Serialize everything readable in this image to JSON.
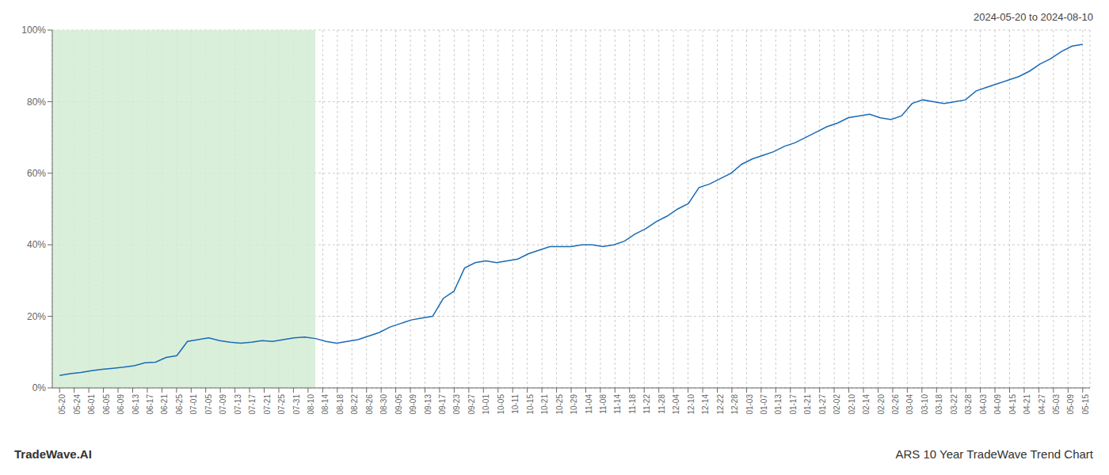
{
  "chart_data": {
    "type": "line",
    "title": "ARS 10 Year TradeWave Trend Chart",
    "subtitle": "2024-05-20 to 2024-08-10",
    "annotations": [
      "TradeWave.AI"
    ],
    "color": "#1a6bb5",
    "grid": true,
    "xlim": [
      -0.5,
      70.5
    ],
    "ylim": [
      0,
      100
    ],
    "yticks": [
      {
        "value": 0,
        "label": "0%"
      },
      {
        "value": 20,
        "label": "20%"
      },
      {
        "value": 40,
        "label": "40%"
      },
      {
        "value": 60,
        "label": "60%"
      },
      {
        "value": 80,
        "label": "80%"
      },
      {
        "value": 100,
        "label": "100%"
      }
    ],
    "xticks": [
      {
        "value": 0,
        "label": "05-20"
      },
      {
        "value": 1,
        "label": "05-24"
      },
      {
        "value": 2,
        "label": "06-01"
      },
      {
        "value": 3,
        "label": "06-05"
      },
      {
        "value": 4,
        "label": "06-09"
      },
      {
        "value": 5,
        "label": "06-13"
      },
      {
        "value": 6,
        "label": "06-17"
      },
      {
        "value": 7,
        "label": "06-21"
      },
      {
        "value": 8,
        "label": "06-25"
      },
      {
        "value": 9,
        "label": "07-01"
      },
      {
        "value": 10,
        "label": "07-05"
      },
      {
        "value": 11,
        "label": "07-09"
      },
      {
        "value": 12,
        "label": "07-13"
      },
      {
        "value": 13,
        "label": "07-17"
      },
      {
        "value": 14,
        "label": "07-21"
      },
      {
        "value": 15,
        "label": "07-25"
      },
      {
        "value": 16,
        "label": "07-31"
      },
      {
        "value": 17,
        "label": "08-10"
      },
      {
        "value": 18,
        "label": "08-14"
      },
      {
        "value": 19,
        "label": "08-18"
      },
      {
        "value": 20,
        "label": "08-22"
      },
      {
        "value": 21,
        "label": "08-26"
      },
      {
        "value": 22,
        "label": "08-30"
      },
      {
        "value": 23,
        "label": "09-05"
      },
      {
        "value": 24,
        "label": "09-09"
      },
      {
        "value": 25,
        "label": "09-13"
      },
      {
        "value": 26,
        "label": "09-17"
      },
      {
        "value": 27,
        "label": "09-23"
      },
      {
        "value": 28,
        "label": "09-27"
      },
      {
        "value": 29,
        "label": "10-01"
      },
      {
        "value": 30,
        "label": "10-05"
      },
      {
        "value": 31,
        "label": "10-11"
      },
      {
        "value": 32,
        "label": "10-15"
      },
      {
        "value": 33,
        "label": "10-21"
      },
      {
        "value": 34,
        "label": "10-25"
      },
      {
        "value": 35,
        "label": "10-29"
      },
      {
        "value": 36,
        "label": "11-04"
      },
      {
        "value": 37,
        "label": "11-08"
      },
      {
        "value": 38,
        "label": "11-14"
      },
      {
        "value": 39,
        "label": "11-18"
      },
      {
        "value": 40,
        "label": "11-22"
      },
      {
        "value": 41,
        "label": "11-28"
      },
      {
        "value": 42,
        "label": "12-04"
      },
      {
        "value": 43,
        "label": "12-10"
      },
      {
        "value": 44,
        "label": "12-14"
      },
      {
        "value": 45,
        "label": "12-22"
      },
      {
        "value": 46,
        "label": "12-28"
      },
      {
        "value": 47,
        "label": "01-03"
      },
      {
        "value": 48,
        "label": "01-07"
      },
      {
        "value": 49,
        "label": "01-13"
      },
      {
        "value": 50,
        "label": "01-17"
      },
      {
        "value": 51,
        "label": "01-21"
      },
      {
        "value": 52,
        "label": "01-27"
      },
      {
        "value": 53,
        "label": "02-02"
      },
      {
        "value": 54,
        "label": "02-10"
      },
      {
        "value": 55,
        "label": "02-14"
      },
      {
        "value": 56,
        "label": "02-20"
      },
      {
        "value": 57,
        "label": "02-26"
      },
      {
        "value": 58,
        "label": "03-04"
      },
      {
        "value": 59,
        "label": "03-10"
      },
      {
        "value": 60,
        "label": "03-18"
      },
      {
        "value": 61,
        "label": "03-22"
      },
      {
        "value": 62,
        "label": "03-28"
      },
      {
        "value": 63,
        "label": "04-03"
      },
      {
        "value": 64,
        "label": "04-09"
      },
      {
        "value": 65,
        "label": "04-15"
      },
      {
        "value": 66,
        "label": "04-21"
      },
      {
        "value": 67,
        "label": "04-27"
      },
      {
        "value": 68,
        "label": "05-03"
      },
      {
        "value": 69,
        "label": "05-09"
      },
      {
        "value": 70,
        "label": "05-15"
      }
    ],
    "shade": {
      "x": [
        -0.5,
        17.5
      ],
      "color": "#d4ecd4"
    },
    "x": [
      0,
      0.729167,
      1.458333,
      2.1875,
      2.916667,
      3.645833,
      4.375,
      5.104167,
      5.833333,
      6.5625,
      7.291667,
      8.020833,
      8.75,
      9.479167,
      10.208333,
      10.9375,
      11.666667,
      12.395833,
      13.125,
      13.854167,
      14.583333,
      15.3125,
      16.041667,
      16.770833,
      17.5,
      18.229167,
      18.958333,
      19.6875,
      20.416667,
      21.145833,
      21.875,
      22.604167,
      23.333333,
      24.0625,
      24.791667,
      25.520833,
      26.25,
      26.979167,
      27.708333,
      28.4375,
      29.166667,
      29.895833,
      30.625,
      31.354167,
      32.083333,
      32.8125,
      33.541667,
      34.270833,
      35,
      35.729167,
      36.458333,
      37.1875,
      37.916667,
      38.645833,
      39.375,
      40.104167,
      40.833333,
      41.5625,
      42.291667,
      43.020833,
      43.75,
      44.479167,
      45.208333,
      45.9375,
      46.666667,
      47.395833,
      48.125,
      48.854167,
      49.583333,
      50.3125,
      51.041667,
      51.770833,
      52.5,
      53.229167,
      53.958333,
      54.6875,
      55.416667,
      56.145833,
      56.875,
      57.604167,
      58.333333,
      59.0625,
      59.791667,
      60.520833,
      61.25,
      61.979167,
      62.708333,
      63.4375,
      64.166667,
      64.895833,
      65.625,
      66.354167,
      67.083333,
      67.8125,
      68.541667,
      69.270833,
      70
    ],
    "values": [
      3.5,
      4.0,
      4.3,
      4.8,
      5.2,
      5.5,
      5.8,
      6.2,
      7.0,
      7.2,
      8.5,
      9.0,
      13.0,
      13.5,
      14.0,
      13.2,
      12.8,
      12.5,
      12.8,
      13.2,
      13.0,
      13.5,
      14.0,
      14.2,
      13.8,
      13.0,
      12.5,
      13.0,
      13.5,
      14.5,
      15.5,
      17.0,
      18.0,
      19.0,
      19.5,
      20.0,
      25.0,
      27.0,
      33.5,
      35.0,
      35.5,
      35.0,
      35.5,
      36.0,
      37.5,
      38.5,
      39.5,
      39.5,
      39.5,
      40.0,
      40.0,
      39.5,
      40.0,
      41.0,
      43.0,
      44.5,
      46.5,
      48.0,
      50.0,
      51.5,
      56.0,
      57.0,
      58.5,
      60.0,
      62.5,
      64.0,
      65.0,
      66.0,
      67.5,
      68.5,
      70.0,
      71.5,
      73.0,
      74.0,
      75.5,
      76.0,
      76.5,
      75.5,
      75.0,
      76.0,
      79.5,
      80.5,
      80.0,
      79.5,
      80.0,
      80.5,
      83.0,
      84.0,
      85.0,
      86.0,
      87.0,
      88.5,
      90.5,
      92.0,
      94.0,
      95.5,
      96.0
    ]
  }
}
